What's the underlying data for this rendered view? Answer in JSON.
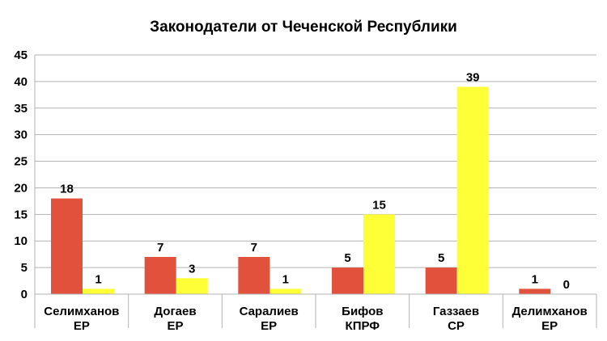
{
  "chart_data": {
    "type": "bar",
    "title": "Законодатели от Чеченской Республики",
    "xlabel": "",
    "ylabel": "",
    "ylim": [
      0,
      45
    ],
    "yticks": [
      0,
      5,
      10,
      15,
      20,
      25,
      30,
      35,
      40,
      45
    ],
    "grid": true,
    "legend": "none",
    "categories": [
      [
        "Селимханов",
        "ЕР"
      ],
      [
        "Догаев",
        "ЕР"
      ],
      [
        "Саралиев",
        "ЕР"
      ],
      [
        "Бифов",
        "КПРФ"
      ],
      [
        "Газзаев",
        "СР"
      ],
      [
        "Делимханов",
        "ЕР"
      ]
    ],
    "series": [
      {
        "color": "#e2513c",
        "values": [
          18,
          7,
          7,
          5,
          5,
          1
        ]
      },
      {
        "color": "#ffff38",
        "values": [
          1,
          3,
          1,
          15,
          39,
          0
        ]
      }
    ]
  }
}
